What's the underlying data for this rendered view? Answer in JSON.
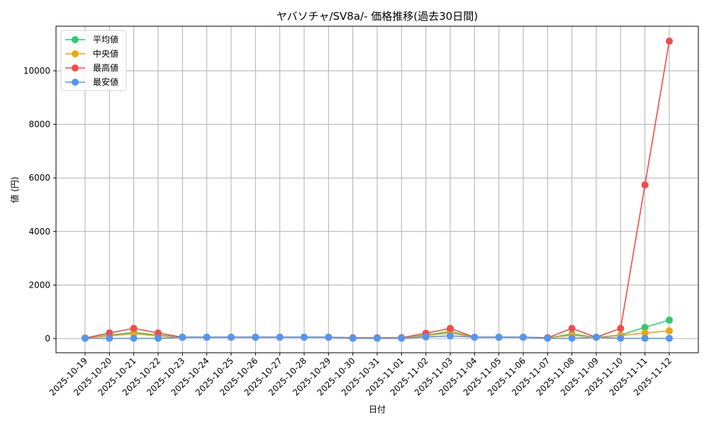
{
  "chart_data": {
    "type": "line",
    "title": "ヤバソチャ/SV8a/- 価格推移(過去30日間)",
    "xlabel": "日付",
    "ylabel": "値 (円)",
    "ylim": [
      -550,
      11620
    ],
    "yticks": [
      0,
      2000,
      4000,
      6000,
      8000,
      10000
    ],
    "grid": true,
    "legend_position": "upper left",
    "x": [
      "2025-10-19",
      "2025-10-20",
      "2025-10-21",
      "2025-10-22",
      "2025-10-23",
      "2025-10-24",
      "2025-10-25",
      "2025-10-26",
      "2025-10-27",
      "2025-10-28",
      "2025-10-29",
      "2025-10-30",
      "2025-10-31",
      "2025-11-01",
      "2025-11-02",
      "2025-11-03",
      "2025-11-04",
      "2025-11-05",
      "2025-11-06",
      "2025-11-07",
      "2025-11-08",
      "2025-11-09",
      "2025-11-10",
      "2025-11-11",
      "2025-11-12"
    ],
    "series": [
      {
        "name": "平均値",
        "color": "#2ecc71",
        "values": [
          20,
          130,
          230,
          130,
          50,
          50,
          50,
          50,
          50,
          50,
          50,
          30,
          30,
          30,
          130,
          270,
          50,
          50,
          50,
          30,
          170,
          50,
          130,
          420,
          690
        ]
      },
      {
        "name": "中央値",
        "color": "#f5a30a",
        "values": [
          20,
          100,
          180,
          100,
          50,
          50,
          50,
          50,
          50,
          50,
          50,
          30,
          30,
          30,
          110,
          210,
          50,
          50,
          50,
          30,
          120,
          50,
          110,
          210,
          290
        ]
      },
      {
        "name": "最高値",
        "color": "#f24b4b",
        "values": [
          20,
          210,
          380,
          210,
          50,
          50,
          50,
          50,
          50,
          50,
          50,
          30,
          30,
          30,
          200,
          380,
          50,
          50,
          50,
          30,
          380,
          50,
          380,
          5740,
          11110
        ]
      },
      {
        "name": "最安値",
        "color": "#4f97f7",
        "values": [
          10,
          10,
          10,
          10,
          50,
          50,
          50,
          50,
          50,
          50,
          50,
          10,
          10,
          10,
          60,
          100,
          50,
          50,
          50,
          10,
          10,
          50,
          10,
          10,
          10
        ]
      }
    ]
  }
}
